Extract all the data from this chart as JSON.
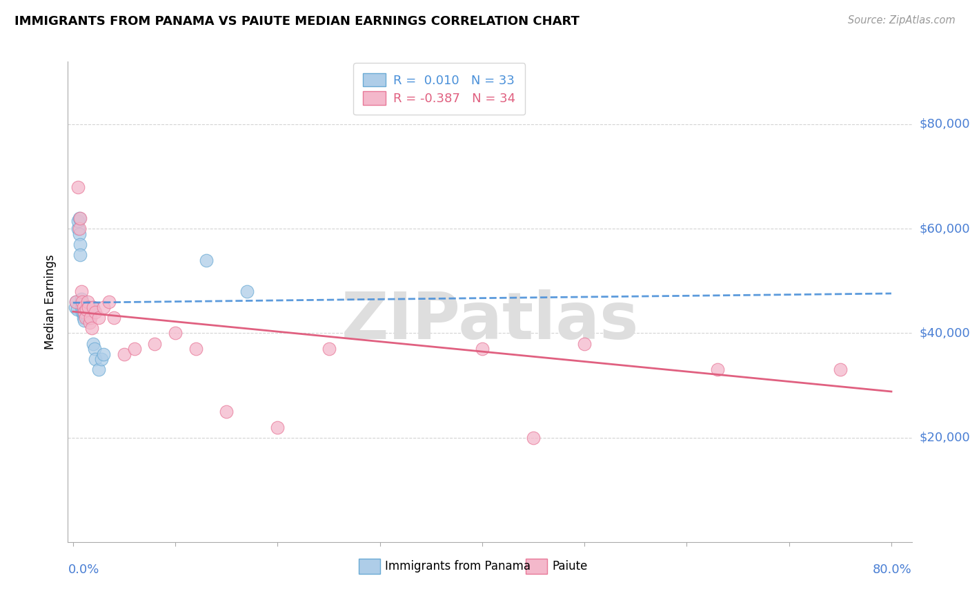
{
  "title": "IMMIGRANTS FROM PANAMA VS PAIUTE MEDIAN EARNINGS CORRELATION CHART",
  "source": "Source: ZipAtlas.com",
  "ylabel": "Median Earnings",
  "xlim": [
    -0.005,
    0.82
  ],
  "ylim": [
    0,
    92000
  ],
  "blue_R": 0.01,
  "blue_N": 33,
  "pink_R": -0.387,
  "pink_N": 34,
  "blue_fill": "#aecde8",
  "blue_edge": "#6aaad4",
  "pink_fill": "#f4b8cb",
  "pink_edge": "#e87898",
  "blue_trend_color": "#4a90d9",
  "pink_trend_color": "#e06080",
  "legend_label_blue": "Immigrants from Panama",
  "legend_label_pink": "Paiute",
  "watermark": "ZIPatlas",
  "grid_color": "#cccccc",
  "ytick_color": "#4a7fd4",
  "xtick_color": "#4a7fd4",
  "blue_x": [
    0.002,
    0.003,
    0.004,
    0.005,
    0.005,
    0.006,
    0.006,
    0.007,
    0.007,
    0.008,
    0.008,
    0.009,
    0.009,
    0.01,
    0.01,
    0.011,
    0.011,
    0.012,
    0.013,
    0.014,
    0.015,
    0.016,
    0.017,
    0.018,
    0.019,
    0.02,
    0.021,
    0.022,
    0.025,
    0.028,
    0.03,
    0.13,
    0.17
  ],
  "blue_y": [
    45000,
    46000,
    44500,
    60000,
    61500,
    59000,
    62000,
    57000,
    55000,
    45000,
    46500,
    44000,
    45500,
    43000,
    44000,
    43500,
    42500,
    45000,
    44000,
    43000,
    45000,
    43500,
    44000,
    44500,
    45000,
    38000,
    37000,
    35000,
    33000,
    35000,
    36000,
    54000,
    48000
  ],
  "pink_x": [
    0.003,
    0.005,
    0.006,
    0.007,
    0.008,
    0.009,
    0.01,
    0.011,
    0.012,
    0.013,
    0.014,
    0.015,
    0.016,
    0.017,
    0.018,
    0.02,
    0.022,
    0.025,
    0.03,
    0.035,
    0.04,
    0.05,
    0.06,
    0.08,
    0.1,
    0.12,
    0.15,
    0.2,
    0.25,
    0.4,
    0.45,
    0.5,
    0.63,
    0.75
  ],
  "pink_y": [
    46000,
    68000,
    60000,
    62000,
    48000,
    46000,
    45000,
    44000,
    43000,
    44500,
    46000,
    45000,
    42000,
    43000,
    41000,
    45000,
    44000,
    43000,
    45000,
    46000,
    43000,
    36000,
    37000,
    38000,
    40000,
    37000,
    25000,
    22000,
    37000,
    37000,
    20000,
    38000,
    33000,
    33000
  ]
}
